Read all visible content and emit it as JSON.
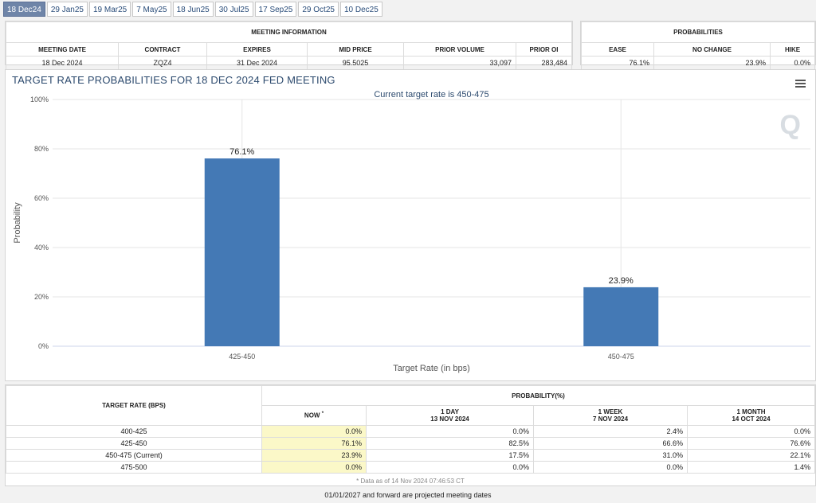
{
  "tabs": [
    "18 Dec24",
    "29 Jan25",
    "19 Mar25",
    "7 May25",
    "18 Jun25",
    "30 Jul25",
    "17 Sep25",
    "29 Oct25",
    "10 Dec25"
  ],
  "active_tab": 0,
  "meeting_info": {
    "group_title": "MEETING INFORMATION",
    "headers": [
      "MEETING DATE",
      "CONTRACT",
      "EXPIRES",
      "MID PRICE",
      "PRIOR VOLUME",
      "PRIOR OI"
    ],
    "values": [
      "18 Dec 2024",
      "ZQZ4",
      "31 Dec 2024",
      "95.5025",
      "33,097",
      "283,484"
    ]
  },
  "probabilities": {
    "group_title": "PROBABILITIES",
    "headers": [
      "EASE",
      "NO CHANGE",
      "HIKE"
    ],
    "values": [
      "76.1%",
      "23.9%",
      "0.0%"
    ]
  },
  "chart_data": {
    "type": "bar",
    "title": "TARGET RATE PROBABILITIES FOR 18 DEC 2024 FED MEETING",
    "subtitle": "Current target rate is 450-475",
    "xlabel": "Target Rate (in bps)",
    "ylabel": "Probability",
    "categories": [
      "425-450",
      "450-475"
    ],
    "values": [
      76.1,
      23.9
    ],
    "data_labels": [
      "76.1%",
      "23.9%"
    ],
    "ylim": [
      0,
      100
    ],
    "yticks": [
      "0%",
      "20%",
      "40%",
      "60%",
      "80%",
      "100%"
    ],
    "grid": true,
    "bar_color": "#4479b5"
  },
  "prob_table": {
    "row_header": "TARGET RATE (BPS)",
    "group_title": "PROBABILITY(%)",
    "columns": [
      {
        "line1": "NOW",
        "marker": "*",
        "line2": ""
      },
      {
        "line1": "1 DAY",
        "line2": "13 NOV 2024"
      },
      {
        "line1": "1 WEEK",
        "line2": "7 NOV 2024"
      },
      {
        "line1": "1 MONTH",
        "line2": "14 OCT 2024"
      }
    ],
    "rows": [
      {
        "rate": "400-425",
        "values": [
          "0.0%",
          "0.0%",
          "2.4%",
          "0.0%"
        ]
      },
      {
        "rate": "425-450",
        "values": [
          "76.1%",
          "82.5%",
          "66.6%",
          "76.6%"
        ]
      },
      {
        "rate": "450-475 (Current)",
        "values": [
          "23.9%",
          "17.5%",
          "31.0%",
          "22.1%"
        ]
      },
      {
        "rate": "475-500",
        "values": [
          "0.0%",
          "0.0%",
          "0.0%",
          "1.4%"
        ]
      }
    ],
    "footnote": "* Data as of 14 Nov 2024 07:46:53 CT"
  },
  "footer": "01/01/2027 and forward are projected meeting dates"
}
